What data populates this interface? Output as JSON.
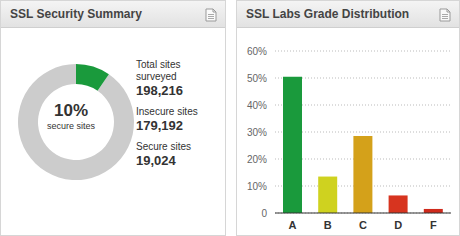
{
  "chart_data": [
    {
      "type": "pie",
      "title": "SSL Security Summary",
      "categories": [
        "Insecure sites",
        "Secure sites"
      ],
      "values": [
        179192,
        19024
      ],
      "value_labels": [
        "179,192",
        "19,024"
      ],
      "colors": [
        "#cccccc",
        "#1a9a3c"
      ],
      "total": {
        "label": "Total sites surveyed",
        "value": 198216,
        "value_label": "198,216"
      },
      "annotation": {
        "value": 10,
        "label": "10%",
        "text": "secure sites"
      }
    },
    {
      "type": "bar",
      "title": "SSL Labs Grade Distribution",
      "categories": [
        "A",
        "B",
        "C",
        "D",
        "F"
      ],
      "values": [
        50.5,
        13.5,
        28.5,
        6.5,
        1.5
      ],
      "colors": [
        "#1a9a3c",
        "#cfd21f",
        "#d4a11a",
        "#d7341f",
        "#cf2a1c"
      ],
      "ylim": [
        0,
        60
      ],
      "yticks": [
        0,
        {
          "value": 10,
          "label": "10%"
        },
        {
          "value": 20,
          "label": "20%"
        },
        {
          "value": 30,
          "label": "30%"
        },
        {
          "value": 40,
          "label": "40%"
        },
        {
          "value": 50,
          "label": "50%"
        },
        {
          "value": 60,
          "label": "60%"
        }
      ],
      "grid": true
    }
  ]
}
